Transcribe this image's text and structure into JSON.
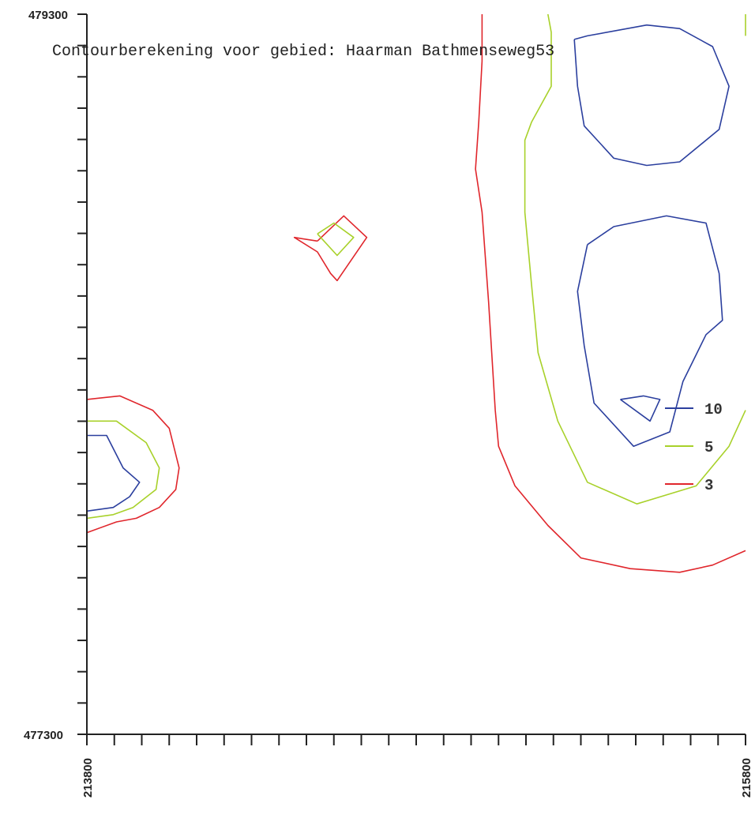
{
  "chart_data": {
    "type": "contour",
    "title": "Contourberekening voor gebied: Haarman Bathmenseweg53",
    "xlabel": "",
    "ylabel": "",
    "xlim": [
      213800,
      215800
    ],
    "ylim": [
      477300,
      479300
    ],
    "x_tick_labels": [
      "213800",
      "215800"
    ],
    "y_tick_labels": [
      "479300",
      "477300"
    ],
    "grid": false,
    "legend_placement": "right",
    "levels": [
      {
        "name": "10",
        "color": "#2b3f9e"
      },
      {
        "name": "5",
        "color": "#a8d12a"
      },
      {
        "name": "3",
        "color": "#e0262c"
      }
    ],
    "contours": [
      {
        "level": "3",
        "color": "#e0262c",
        "points": [
          [
            215000,
            479300
          ],
          [
            215000,
            479170
          ],
          [
            214990,
            479000
          ],
          [
            214980,
            478870
          ],
          [
            215000,
            478750
          ],
          [
            215020,
            478500
          ],
          [
            215040,
            478200
          ],
          [
            215050,
            478100
          ],
          [
            215100,
            477990
          ],
          [
            215200,
            477880
          ],
          [
            215300,
            477790
          ],
          [
            215450,
            477760
          ],
          [
            215600,
            477750
          ],
          [
            215700,
            477770
          ],
          [
            215800,
            477810
          ]
        ]
      },
      {
        "level": "3",
        "color": "#e0262c",
        "points": [
          [
            214500,
            478670
          ],
          [
            214580,
            478740
          ],
          [
            214650,
            478680
          ],
          [
            214590,
            478600
          ],
          [
            214560,
            478560
          ],
          [
            214540,
            478580
          ],
          [
            214500,
            478640
          ],
          [
            214430,
            478680
          ],
          [
            214500,
            478670
          ]
        ]
      },
      {
        "level": "3",
        "color": "#e0262c",
        "points": [
          [
            213800,
            478230
          ],
          [
            213900,
            478240
          ],
          [
            214000,
            478200
          ],
          [
            214050,
            478150
          ],
          [
            214080,
            478040
          ],
          [
            214070,
            477980
          ],
          [
            214020,
            477930
          ],
          [
            213950,
            477900
          ],
          [
            213890,
            477890
          ],
          [
            213800,
            477860
          ]
        ]
      },
      {
        "level": "5",
        "color": "#a8d12a",
        "points": [
          [
            215200,
            479300
          ],
          [
            215210,
            479250
          ],
          [
            215210,
            479100
          ],
          [
            215150,
            479000
          ],
          [
            215130,
            478950
          ],
          [
            215130,
            478750
          ],
          [
            215150,
            478550
          ],
          [
            215170,
            478360
          ],
          [
            215230,
            478170
          ],
          [
            215320,
            478000
          ],
          [
            215470,
            477940
          ],
          [
            215650,
            477990
          ],
          [
            215750,
            478100
          ],
          [
            215800,
            478200
          ]
        ]
      },
      {
        "level": "5",
        "color": "#a8d12a",
        "points": [
          [
            214500,
            478690
          ],
          [
            214550,
            478720
          ],
          [
            214610,
            478680
          ],
          [
            214560,
            478630
          ],
          [
            214500,
            478690
          ]
        ]
      },
      {
        "level": "5",
        "color": "#a8d12a",
        "points": [
          [
            213800,
            478170
          ],
          [
            213890,
            478170
          ],
          [
            213980,
            478110
          ],
          [
            214020,
            478040
          ],
          [
            214010,
            477980
          ],
          [
            213940,
            477930
          ],
          [
            213880,
            477910
          ],
          [
            213800,
            477900
          ]
        ]
      },
      {
        "level": "5",
        "color": "#a8d12a",
        "points": [
          [
            215800,
            479300
          ],
          [
            215800,
            479240
          ]
        ]
      },
      {
        "level": "10",
        "color": "#2b3f9e",
        "points": [
          [
            215280,
            479230
          ],
          [
            215320,
            479240
          ],
          [
            215500,
            479270
          ],
          [
            215600,
            479260
          ],
          [
            215700,
            479210
          ],
          [
            215750,
            479100
          ],
          [
            215720,
            478980
          ],
          [
            215600,
            478890
          ],
          [
            215500,
            478880
          ],
          [
            215400,
            478900
          ],
          [
            215310,
            478990
          ],
          [
            215290,
            479100
          ],
          [
            215280,
            479230
          ]
        ]
      },
      {
        "level": "10",
        "color": "#2b3f9e",
        "points": [
          [
            215320,
            478660
          ],
          [
            215400,
            478710
          ],
          [
            215560,
            478740
          ],
          [
            215680,
            478720
          ],
          [
            215720,
            478580
          ],
          [
            215730,
            478450
          ],
          [
            215680,
            478410
          ],
          [
            215610,
            478280
          ],
          [
            215570,
            478140
          ],
          [
            215460,
            478100
          ],
          [
            215340,
            478220
          ],
          [
            215310,
            478380
          ],
          [
            215290,
            478530
          ],
          [
            215320,
            478660
          ]
        ]
      },
      {
        "level": "10",
        "color": "#2b3f9e",
        "points": [
          [
            215420,
            478230
          ],
          [
            215490,
            478240
          ],
          [
            215540,
            478230
          ],
          [
            215510,
            478170
          ],
          [
            215420,
            478230
          ]
        ]
      },
      {
        "level": "10",
        "color": "#2b3f9e",
        "points": [
          [
            213800,
            478130
          ],
          [
            213860,
            478130
          ],
          [
            213910,
            478040
          ],
          [
            213960,
            478000
          ],
          [
            213930,
            477960
          ],
          [
            213880,
            477930
          ],
          [
            213800,
            477920
          ]
        ]
      }
    ]
  }
}
